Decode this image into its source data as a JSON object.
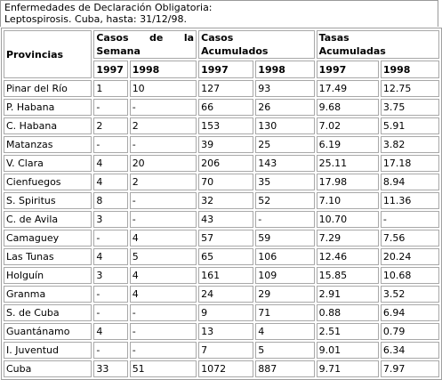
{
  "caption": {
    "line1": "Enfermedades de Declaración Obligatoria:",
    "line2": "Leptospirosis. Cuba, hasta: 31/12/98."
  },
  "headers": {
    "provincias": "Provincias",
    "casos_semana_a": "Casos",
    "casos_semana_b": "de",
    "casos_semana_c": "la",
    "casos_semana_d": "Semana",
    "casos_acum_a": "Casos",
    "casos_acum_b": "Acumulados",
    "tasas_acum_a": "Tasas",
    "tasas_acum_b": "Acumuladas",
    "y1997": "1997",
    "y1998": "1998"
  },
  "rows": [
    {
      "prov": "Pinar del Río",
      "s97": "1",
      "s98": "10",
      "c97": "127",
      "c98": "93",
      "t97": "17.49",
      "t98": "12.75"
    },
    {
      "prov": "P. Habana",
      "s97": "-",
      "s98": "-",
      "c97": "66",
      "c98": "26",
      "t97": "9.68",
      "t98": "3.75"
    },
    {
      "prov": "C. Habana",
      "s97": "2",
      "s98": "2",
      "c97": "153",
      "c98": "130",
      "t97": "7.02",
      "t98": "5.91"
    },
    {
      "prov": "Matanzas",
      "s97": "-",
      "s98": "-",
      "c97": "39",
      "c98": "25",
      "t97": "6.19",
      "t98": "3.82"
    },
    {
      "prov": "V. Clara",
      "s97": "4",
      "s98": "20",
      "c97": "206",
      "c98": "143",
      "t97": "25.11",
      "t98": "17.18"
    },
    {
      "prov": "Cienfuegos",
      "s97": "4",
      "s98": "2",
      "c97": "70",
      "c98": "35",
      "t97": "17.98",
      "t98": "8.94"
    },
    {
      "prov": "S. Spiritus",
      "s97": "8",
      "s98": "-",
      "c97": "32",
      "c98": "52",
      "t97": "7.10",
      "t98": "11.36"
    },
    {
      "prov": "C. de Avila",
      "s97": "3",
      "s98": "-",
      "c97": "43",
      "c98": "-",
      "t97": "10.70",
      "t98": "-"
    },
    {
      "prov": "Camaguey",
      "s97": "-",
      "s98": "4",
      "c97": "57",
      "c98": "59",
      "t97": "7.29",
      "t98": "7.56"
    },
    {
      "prov": "Las Tunas",
      "s97": "4",
      "s98": "5",
      "c97": "65",
      "c98": "106",
      "t97": "12.46",
      "t98": "20.24"
    },
    {
      "prov": "Holguín",
      "s97": "3",
      "s98": "4",
      "c97": "161",
      "c98": "109",
      "t97": "15.85",
      "t98": "10.68"
    },
    {
      "prov": "Granma",
      "s97": "-",
      "s98": "4",
      "c97": "24",
      "c98": "29",
      "t97": "2.91",
      "t98": "3.52"
    },
    {
      "prov": "S. de Cuba",
      "s97": "-",
      "s98": "-",
      "c97": "9",
      "c98": "71",
      "t97": "0.88",
      "t98": "6.94"
    },
    {
      "prov": "Guantánamo",
      "s97": "4",
      "s98": "-",
      "c97": "13",
      "c98": "4",
      "t97": "2.51",
      "t98": "0.79"
    },
    {
      "prov": "I. Juventud",
      "s97": "-",
      "s98": "-",
      "c97": "7",
      "c98": "5",
      "t97": "9.01",
      "t98": "6.34"
    },
    {
      "prov": "Cuba",
      "s97": "33",
      "s98": "51",
      "c97": "1072",
      "c98": "887",
      "t97": "9.71",
      "t98": "7.97"
    }
  ]
}
